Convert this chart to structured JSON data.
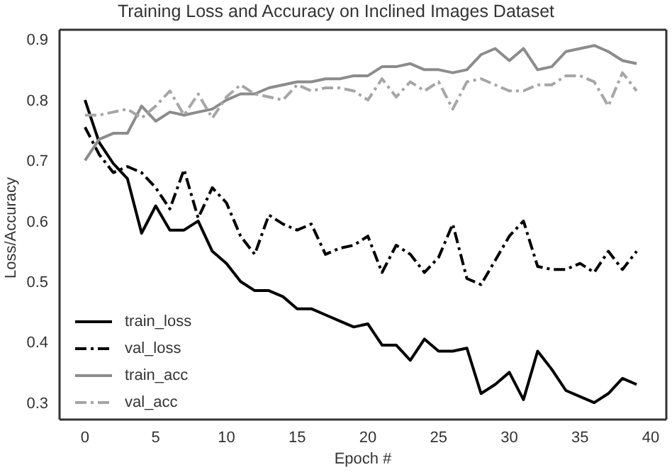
{
  "chart_data": {
    "type": "line",
    "title": "Training Loss and Accuracy on Inclined Images Dataset",
    "xlabel": "Epoch #",
    "ylabel": "Loss/Accuracy",
    "x": [
      0,
      1,
      2,
      3,
      4,
      5,
      6,
      7,
      8,
      9,
      10,
      11,
      12,
      13,
      14,
      15,
      16,
      17,
      18,
      19,
      20,
      21,
      22,
      23,
      24,
      25,
      26,
      27,
      28,
      29,
      30,
      31,
      32,
      33,
      34,
      35,
      36,
      37,
      38,
      39
    ],
    "series": [
      {
        "name": "train_loss",
        "color": "#000000",
        "line_style": "solid",
        "values": [
          0.8,
          0.73,
          0.695,
          0.67,
          0.58,
          0.625,
          0.585,
          0.585,
          0.6,
          0.55,
          0.53,
          0.5,
          0.485,
          0.485,
          0.475,
          0.455,
          0.455,
          0.445,
          0.435,
          0.425,
          0.43,
          0.395,
          0.395,
          0.37,
          0.405,
          0.385,
          0.385,
          0.39,
          0.315,
          0.33,
          0.35,
          0.305,
          0.385,
          0.355,
          0.32,
          0.31,
          0.3,
          0.315,
          0.34,
          0.33
        ]
      },
      {
        "name": "val_loss",
        "color": "#000000",
        "line_style": "dashed",
        "values": [
          0.755,
          0.71,
          0.68,
          0.69,
          0.68,
          0.655,
          0.62,
          0.685,
          0.605,
          0.655,
          0.63,
          0.575,
          0.545,
          0.61,
          0.595,
          0.585,
          0.595,
          0.545,
          0.555,
          0.56,
          0.575,
          0.515,
          0.56,
          0.545,
          0.515,
          0.54,
          0.595,
          0.505,
          0.495,
          0.535,
          0.575,
          0.6,
          0.525,
          0.52,
          0.52,
          0.53,
          0.515,
          0.55,
          0.52,
          0.55
        ]
      },
      {
        "name": "train_acc",
        "color": "#8c8c8c",
        "line_style": "solid",
        "values": [
          0.7,
          0.735,
          0.745,
          0.745,
          0.79,
          0.765,
          0.78,
          0.775,
          0.78,
          0.785,
          0.8,
          0.81,
          0.81,
          0.82,
          0.825,
          0.83,
          0.83,
          0.835,
          0.835,
          0.84,
          0.84,
          0.855,
          0.855,
          0.86,
          0.85,
          0.85,
          0.845,
          0.85,
          0.875,
          0.885,
          0.865,
          0.885,
          0.85,
          0.855,
          0.88,
          0.885,
          0.89,
          0.88,
          0.865,
          0.86
        ]
      },
      {
        "name": "val_acc",
        "color": "#a6a6a6",
        "line_style": "dashed",
        "values": [
          0.775,
          0.775,
          0.78,
          0.785,
          0.77,
          0.79,
          0.815,
          0.775,
          0.81,
          0.77,
          0.805,
          0.825,
          0.81,
          0.805,
          0.8,
          0.825,
          0.815,
          0.82,
          0.82,
          0.815,
          0.8,
          0.835,
          0.805,
          0.83,
          0.815,
          0.83,
          0.785,
          0.83,
          0.835,
          0.825,
          0.815,
          0.815,
          0.825,
          0.825,
          0.84,
          0.84,
          0.83,
          0.79,
          0.845,
          0.815
        ]
      }
    ],
    "xlim": [
      -1.8,
      41.1
    ],
    "xticks": [
      0,
      5,
      10,
      15,
      20,
      25,
      30,
      35,
      40
    ],
    "ylim": [
      0.272,
      0.916
    ],
    "yticks": [
      0.3,
      0.4,
      0.5,
      0.6,
      0.7,
      0.8,
      0.9
    ],
    "grid": false,
    "legend": "bottom left",
    "marker": "none"
  }
}
